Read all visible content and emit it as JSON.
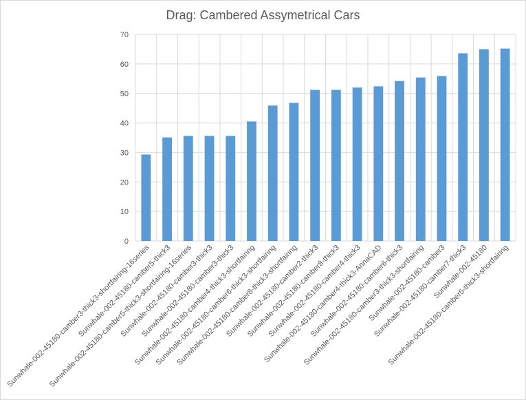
{
  "chart_data": {
    "type": "bar",
    "title": "Drag: Cambered Assymetrical Cars",
    "xlabel": "",
    "ylabel": "",
    "ylim": [
      0,
      70
    ],
    "yticks": [
      0,
      10,
      20,
      30,
      40,
      50,
      60,
      70
    ],
    "grid": true,
    "legend": "none",
    "bar_color": "#5b9bd5",
    "categories": [
      "Sunwhale-002-45180-camber3-thick3-shortfairing-16series",
      "Sunwhale-002-45180-camber5-thick3",
      "Sunwhale-002-45180-camber5-thick3-shortfairing-16series",
      "Sunwhale-002-45180-camber3-thick3",
      "Sunwhale-002-45180-camber3-thick3",
      "Sunwhale-002-45180-camber4-thick3-shortfairing",
      "Sunwhale-002-45180-camber6-thick3-shortfairing",
      "Sunwhale-002-45180-camber8-thick3-shortfairing",
      "Sunwhale-002-45180-camber2-thick3",
      "Sunwhale-002-45180-camber8-thick3",
      "Sunwhale-002-45180-camber4-thick3",
      "Sunwhale-002-45180-camber4-thick3-AnnaCAD",
      "Sunwhale-002-45180-camber6-thick3",
      "Sunwhale-002-45180-camber3-thick3-shortfairing",
      "Sunwhale-002-45180-camber3",
      "Sunwhale-002-45180-camber7-thick3",
      "Sunwhale-002-45180",
      "Sunwhale-002-45180-camber5-thick3-shortfairing"
    ],
    "values": [
      29.3,
      35.1,
      35.6,
      35.6,
      35.6,
      40.5,
      45.9,
      46.8,
      51.2,
      51.2,
      52.0,
      52.4,
      54.2,
      55.4,
      55.9,
      63.6,
      65.0,
      65.2
    ]
  }
}
